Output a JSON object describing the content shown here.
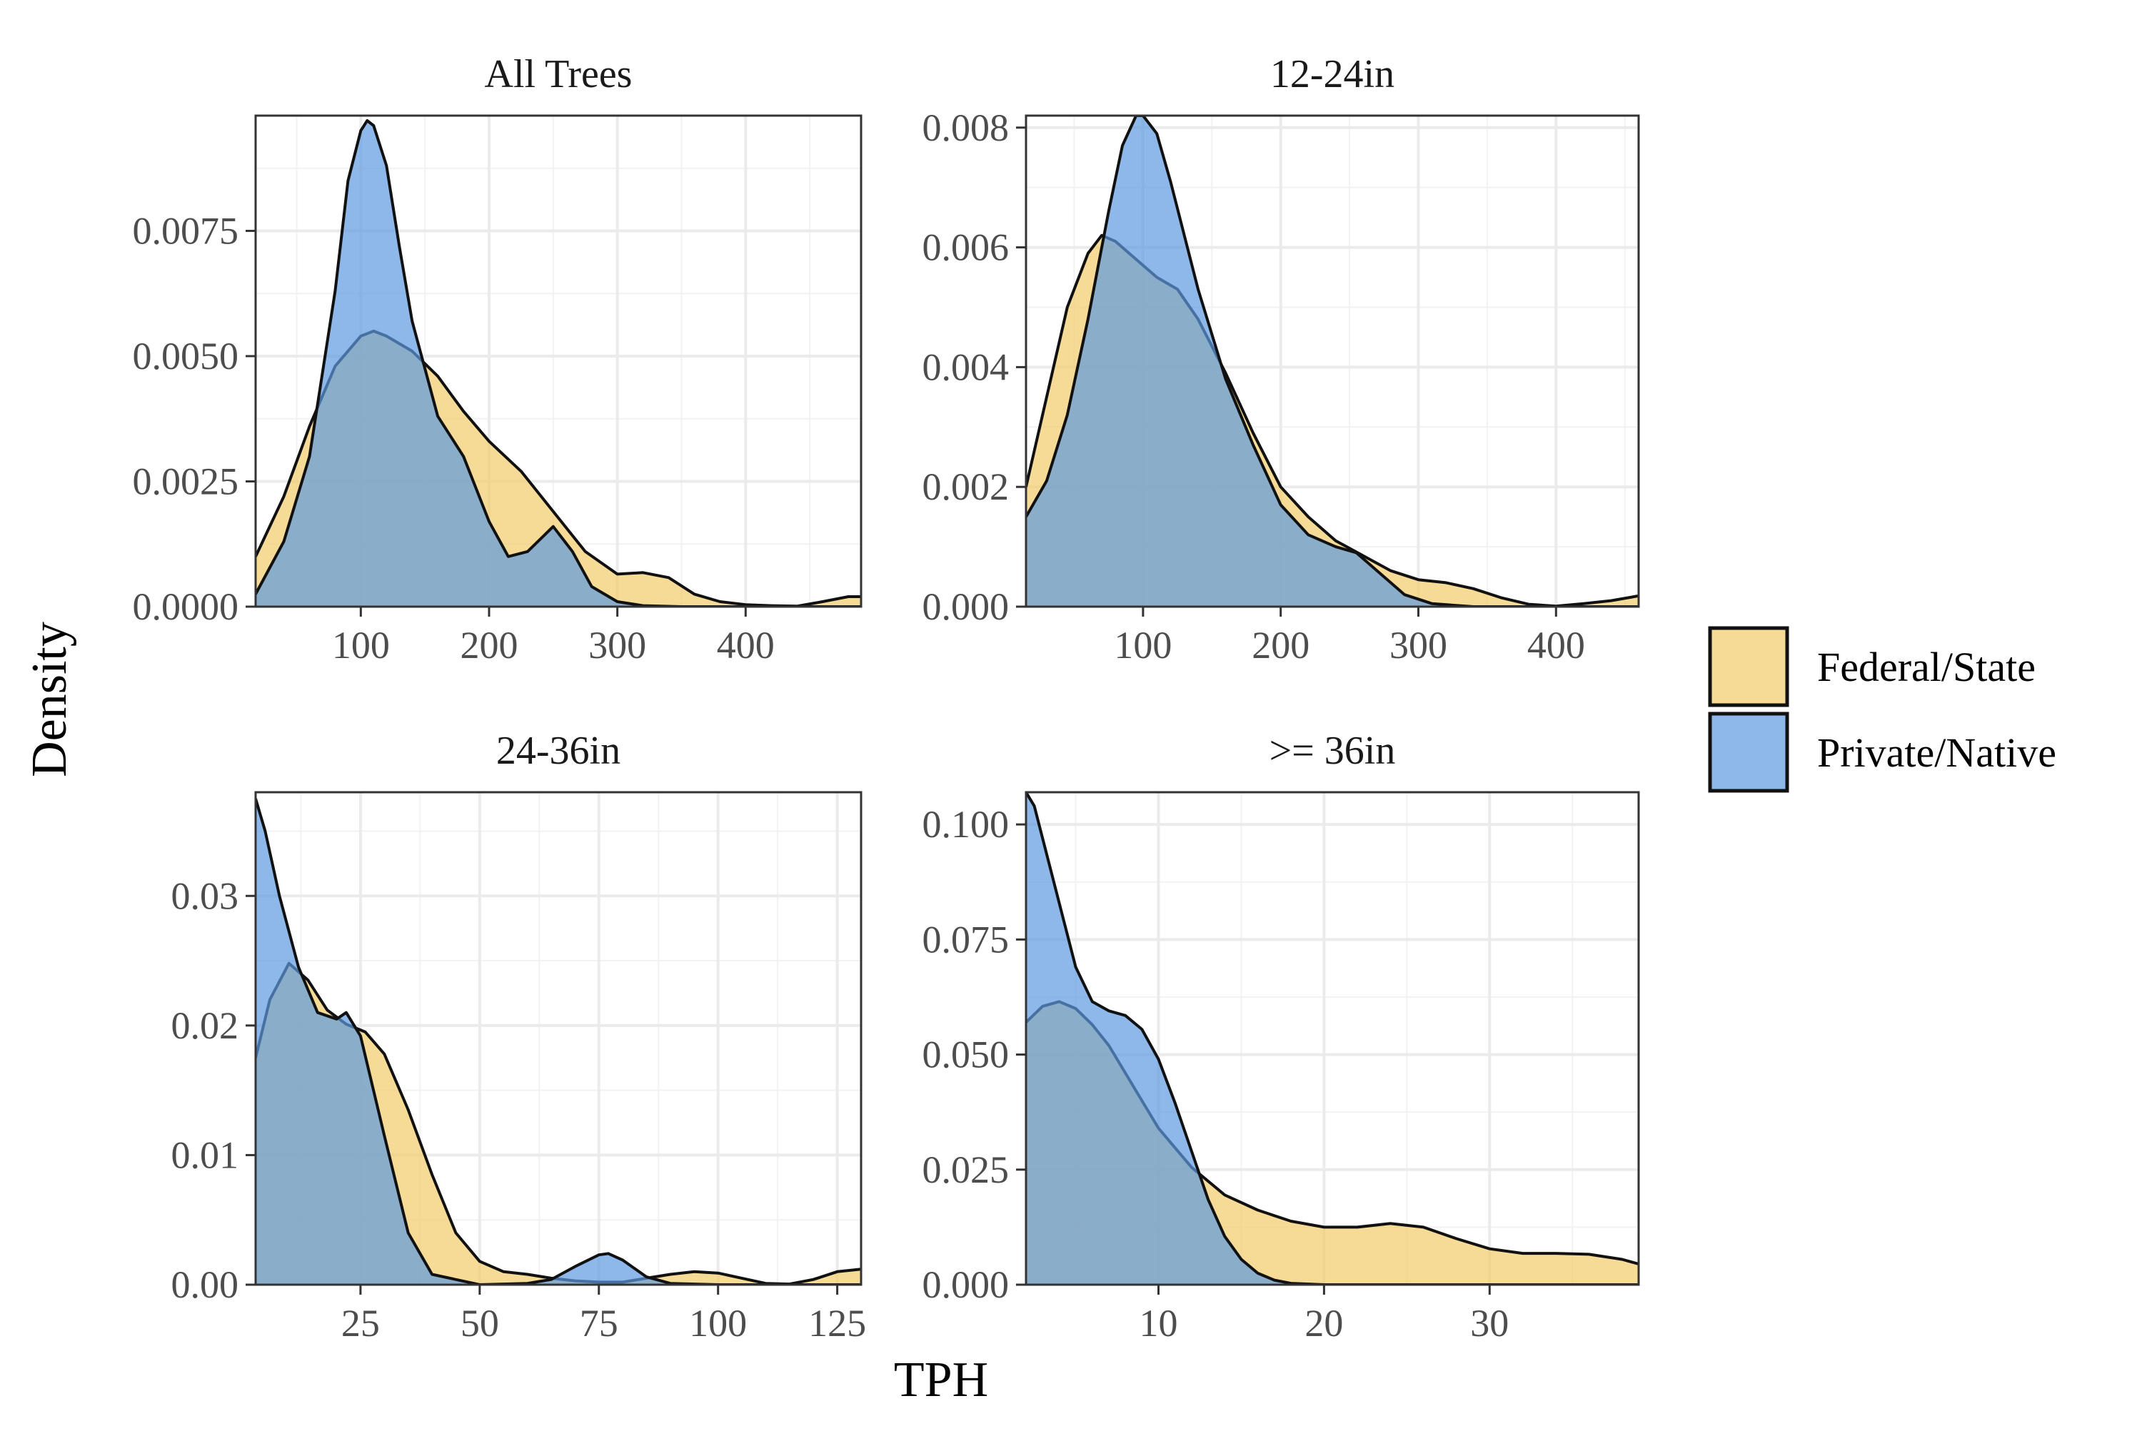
{
  "chart_data": {
    "type": "area",
    "chart_kind": "density-facets",
    "xlabel": "TPH",
    "ylabel": "Density",
    "grid": true,
    "legend_placement": "right",
    "legend": [
      {
        "name": "Federal/State",
        "color": "#F2CC6B"
      },
      {
        "name": "Private/Native",
        "color": "#5C9AE0"
      }
    ],
    "overlap_color": "#87A2A6",
    "panels": [
      {
        "title": "All Trees",
        "xlim": [
          18,
          490
        ],
        "ylim": [
          0,
          0.0098
        ],
        "xticks": [
          100,
          200,
          300,
          400
        ],
        "xtick_labels": [
          "100",
          "200",
          "300",
          "400"
        ],
        "yticks": [
          0,
          0.0025,
          0.005,
          0.0075
        ],
        "ytick_labels": [
          "0.0000",
          "0.0025",
          "0.0050",
          "0.0075"
        ],
        "series": [
          {
            "name": "Federal/State",
            "x": [
              18,
              40,
              60,
              80,
              100,
              110,
              120,
              140,
              160,
              180,
              200,
              225,
              250,
              275,
              300,
              320,
              340,
              360,
              380,
              400,
              420,
              440,
              460,
              480,
              490
            ],
            "y": [
              0.001,
              0.0022,
              0.0036,
              0.0048,
              0.0054,
              0.0055,
              0.0054,
              0.0051,
              0.0046,
              0.0039,
              0.0033,
              0.0027,
              0.0019,
              0.0011,
              0.00065,
              0.00068,
              0.00058,
              0.00025,
              0.0001,
              4e-05,
              2e-05,
              1e-05,
              0.0001,
              0.0002,
              0.0002
            ]
          },
          {
            "name": "Private/Native",
            "x": [
              18,
              40,
              60,
              80,
              90,
              100,
              105,
              110,
              120,
              130,
              140,
              160,
              180,
              200,
              215,
              230,
              250,
              265,
              280,
              300,
              320,
              350,
              400,
              490
            ],
            "y": [
              0.00025,
              0.0013,
              0.003,
              0.0063,
              0.0085,
              0.0095,
              0.0097,
              0.0096,
              0.0088,
              0.0072,
              0.0057,
              0.0038,
              0.003,
              0.0017,
              0.001,
              0.0011,
              0.0016,
              0.0011,
              0.0004,
              0.0001,
              2e-05,
              0,
              0,
              0
            ]
          }
        ]
      },
      {
        "title": "12-24in",
        "xlim": [
          15,
          460
        ],
        "ylim": [
          0,
          0.0082
        ],
        "xticks": [
          100,
          200,
          300,
          400
        ],
        "xtick_labels": [
          "100",
          "200",
          "300",
          "400"
        ],
        "yticks": [
          0,
          0.002,
          0.004,
          0.006,
          0.008
        ],
        "ytick_labels": [
          "0.000",
          "0.002",
          "0.004",
          "0.006",
          "0.008"
        ],
        "series": [
          {
            "name": "Federal/State",
            "x": [
              15,
              30,
              45,
              60,
              70,
              80,
              95,
              110,
              125,
              140,
              160,
              180,
              200,
              220,
              240,
              260,
              280,
              300,
              320,
              340,
              360,
              380,
              400,
              420,
              440,
              460
            ],
            "y": [
              0.002,
              0.0035,
              0.005,
              0.0059,
              0.0062,
              0.0061,
              0.0058,
              0.0055,
              0.0053,
              0.0048,
              0.0039,
              0.0029,
              0.002,
              0.0015,
              0.0011,
              0.00085,
              0.0006,
              0.00045,
              0.0004,
              0.0003,
              0.00015,
              4e-05,
              1e-05,
              5e-05,
              0.0001,
              0.00018
            ]
          },
          {
            "name": "Private/Native",
            "x": [
              15,
              30,
              45,
              60,
              75,
              85,
              95,
              100,
              110,
              120,
              140,
              160,
              180,
              200,
              220,
              240,
              255,
              270,
              290,
              310,
              340,
              460
            ],
            "y": [
              0.0015,
              0.0021,
              0.0032,
              0.0048,
              0.0066,
              0.0077,
              0.0082,
              0.0082,
              0.0079,
              0.0071,
              0.0053,
              0.0038,
              0.0027,
              0.0017,
              0.0012,
              0.001,
              0.0009,
              0.0006,
              0.0002,
              5e-05,
              0,
              0
            ]
          }
        ]
      },
      {
        "title": "24-36in",
        "xlim": [
          3,
          130
        ],
        "ylim": [
          0,
          0.038
        ],
        "xticks": [
          25,
          50,
          75,
          100,
          125
        ],
        "xtick_labels": [
          "25",
          "50",
          "75",
          "100",
          "125"
        ],
        "yticks": [
          0,
          0.01,
          0.02,
          0.03
        ],
        "ytick_labels": [
          "0.00",
          "0.01",
          "0.02",
          "0.03"
        ],
        "series": [
          {
            "name": "Federal/State",
            "x": [
              3,
              6,
              10,
              14,
              18,
              22,
              26,
              30,
              35,
              40,
              45,
              50,
              55,
              60,
              65,
              70,
              75,
              80,
              85,
              90,
              95,
              100,
              105,
              110,
              115,
              120,
              125,
              130
            ],
            "y": [
              0.0175,
              0.022,
              0.0248,
              0.0235,
              0.0212,
              0.0201,
              0.0195,
              0.0178,
              0.0135,
              0.0085,
              0.004,
              0.0018,
              0.001,
              0.0008,
              0.0005,
              0.0003,
              0.0002,
              0.0002,
              0.0005,
              0.0008,
              0.001,
              0.0009,
              0.0005,
              0.0001,
              5e-05,
              0.0004,
              0.001,
              0.0012
            ]
          },
          {
            "name": "Private/Native",
            "x": [
              3,
              5,
              8,
              12,
              16,
              20,
              22,
              25,
              30,
              35,
              40,
              50,
              60,
              65,
              70,
              75,
              77,
              80,
              85,
              90,
              100,
              130
            ],
            "y": [
              0.0375,
              0.035,
              0.03,
              0.0245,
              0.021,
              0.0205,
              0.021,
              0.0192,
              0.0115,
              0.004,
              0.0008,
              0,
              0.0001,
              0.0004,
              0.0014,
              0.0023,
              0.0024,
              0.0019,
              0.0006,
              0.0001,
              0,
              0
            ]
          }
        ]
      },
      {
        "title": ">= 36in",
        "xlim": [
          2,
          39
        ],
        "ylim": [
          0,
          0.107
        ],
        "xticks": [
          10,
          20,
          30
        ],
        "xtick_labels": [
          "10",
          "20",
          "30"
        ],
        "yticks": [
          0,
          0.025,
          0.05,
          0.075,
          0.1
        ],
        "ytick_labels": [
          "0.000",
          "0.025",
          "0.050",
          "0.075",
          "0.100"
        ],
        "series": [
          {
            "name": "Federal/State",
            "x": [
              2,
              3,
              4,
              5,
              6,
              7,
              8,
              9,
              10,
              12,
              14,
              16,
              18,
              20,
              22,
              24,
              26,
              28,
              30,
              32,
              34,
              36,
              38,
              39
            ],
            "y": [
              0.057,
              0.0605,
              0.0615,
              0.06,
              0.0565,
              0.052,
              0.046,
              0.04,
              0.034,
              0.0255,
              0.0195,
              0.0162,
              0.0138,
              0.0125,
              0.0125,
              0.0133,
              0.0125,
              0.01,
              0.0078,
              0.0068,
              0.0068,
              0.0066,
              0.0055,
              0.0045
            ]
          },
          {
            "name": "Private/Native",
            "x": [
              2,
              2.5,
              3,
              4,
              5,
              6,
              7,
              8,
              9,
              10,
              11,
              12,
              13,
              14,
              15,
              16,
              17,
              18,
              20,
              39
            ],
            "y": [
              0.107,
              0.104,
              0.097,
              0.083,
              0.069,
              0.0615,
              0.0595,
              0.0585,
              0.0555,
              0.049,
              0.0395,
              0.029,
              0.0185,
              0.0105,
              0.0055,
              0.0025,
              0.001,
              0.0003,
              0,
              0
            ]
          }
        ]
      }
    ]
  }
}
